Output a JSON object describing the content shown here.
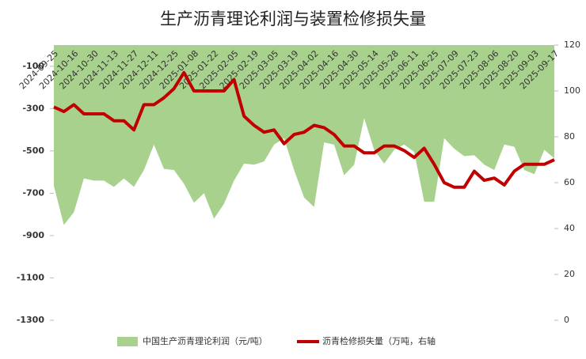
{
  "chart_data": {
    "type": "area_line",
    "title": "生产沥青理论利润与装置检修损失量",
    "categories": [
      "2024-09-25",
      null,
      "2024-10-16",
      null,
      "2024-10-30",
      null,
      "2024-11-13",
      null,
      "2024-11-27",
      null,
      "2024-12-11",
      null,
      "2024-12-25",
      null,
      "2025-01-08",
      null,
      "2025-01-22",
      null,
      "2025-02-05",
      null,
      "2025-02-19",
      null,
      "2025-03-05",
      null,
      "2025-03-19",
      null,
      "2025-04-02",
      null,
      "2025-04-16",
      null,
      "2025-04-30",
      null,
      "2025-05-14",
      null,
      "2025-05-28",
      null,
      "2025-06-11",
      null,
      "2025-06-25",
      null,
      "2025-07-09",
      null,
      "2025-07-23",
      null,
      "2025-08-06",
      null,
      "2025-08-20",
      null,
      "2025-09-03",
      null,
      "2025-09-17"
    ],
    "series": [
      {
        "name": "中国生产沥青理论利润（元/吨）",
        "type": "area",
        "color": "#a9d18e",
        "values": [
          -665,
          -850,
          -790,
          -630,
          -640,
          -640,
          -670,
          -630,
          -670,
          -590,
          -470,
          -585,
          -590,
          -655,
          -745,
          -700,
          -820,
          -750,
          -640,
          -560,
          -565,
          -550,
          -470,
          -440,
          -590,
          -720,
          -765,
          -460,
          -470,
          -615,
          -565,
          -345,
          -495,
          -560,
          -495,
          -470,
          -505,
          -740,
          -740,
          -440,
          -490,
          -525,
          -520,
          -565,
          -590,
          -470,
          -480,
          -590,
          -610,
          -495,
          -535
        ]
      },
      {
        "name": "沥青检修损失量（万吨，右轴",
        "type": "line",
        "axis": "y2",
        "color": "#c00000",
        "values": [
          93,
          91,
          94,
          90,
          90,
          90,
          87,
          87,
          83,
          94,
          94,
          97,
          101,
          108,
          100,
          100,
          100,
          100,
          105,
          89,
          85,
          82,
          83,
          77,
          81,
          82,
          85,
          84,
          81,
          76,
          76,
          73,
          73,
          76,
          76,
          74,
          71,
          75,
          68,
          60,
          58,
          58,
          65,
          61,
          62,
          59,
          65,
          68,
          68,
          68,
          70
        ]
      }
    ],
    "ylim": [
      -1300,
      0
    ],
    "yticks": [
      -100,
      -300,
      -500,
      -700,
      -900,
      -1100,
      -1300
    ],
    "y2lim": [
      0,
      120
    ],
    "y2ticks": [
      0,
      20,
      40,
      60,
      80,
      100,
      120
    ],
    "legend": "bottom"
  }
}
